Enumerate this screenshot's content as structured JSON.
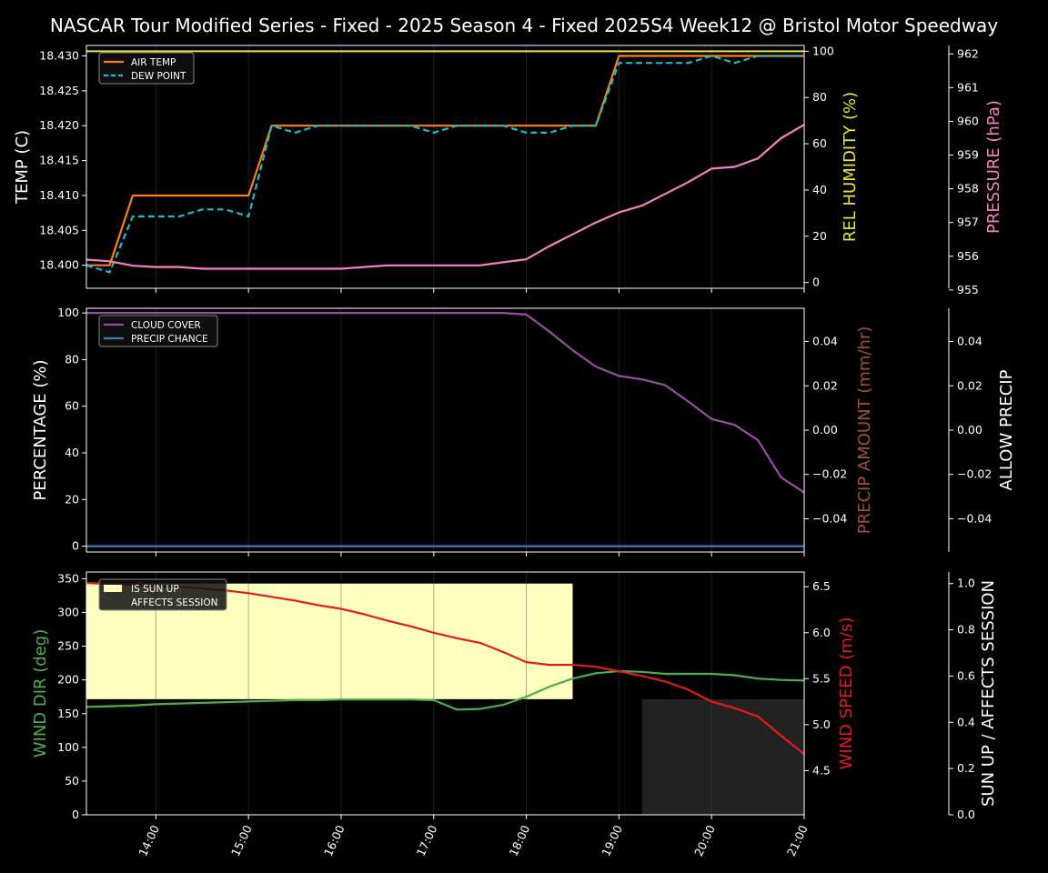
{
  "title": "NASCAR Tour Modified Series - Fixed - 2025 Season 4 - Fixed 2025S4 Week12 @ Bristol Motor Speedway",
  "x_ticks": [
    "14:00",
    "15:00",
    "16:00",
    "17:00",
    "18:00",
    "19:00",
    "20:00",
    "21:00"
  ],
  "colors": {
    "air_temp": "#ff7f0e",
    "dew_point": "#17becf",
    "humidity": "#e6e63c",
    "pressure": "#f781bf",
    "cloud": "#984ea3",
    "precip_chance": "#377eb8",
    "precip_amount": "#a0522d",
    "wind_dir": "#4daf4a",
    "wind_speed": "#e41a1c",
    "sun_up": "#ffffc0",
    "affects": "#222222"
  },
  "chart_data": [
    {
      "type": "line",
      "panel": "weather-temp",
      "x": [
        "13:15",
        "13:30",
        "13:45",
        "14:00",
        "14:15",
        "14:30",
        "14:45",
        "15:00",
        "15:15",
        "15:30",
        "15:45",
        "16:00",
        "16:15",
        "16:30",
        "16:45",
        "17:00",
        "17:15",
        "17:30",
        "17:45",
        "18:00",
        "18:15",
        "18:30",
        "18:45",
        "19:00",
        "19:15",
        "19:30",
        "19:45",
        "20:00",
        "20:15",
        "20:30",
        "20:45",
        "21:00"
      ],
      "xlim": [
        "13:15",
        "21:00"
      ],
      "ylabel": "TEMP (C)",
      "ylim": [
        18.3967,
        18.4315
      ],
      "yticks": [
        "18.400",
        "18.405",
        "18.410",
        "18.415",
        "18.420",
        "18.425",
        "18.430"
      ],
      "y2label": "REL HUMIDITY (%)",
      "y2lim": [
        -2.5,
        102.5
      ],
      "y2ticks": [
        "0",
        "20",
        "40",
        "60",
        "80",
        "100"
      ],
      "y3label": "PRESSURE (hPa)",
      "y3lim": [
        955.05,
        962.25
      ],
      "y3ticks": [
        "955",
        "956",
        "957",
        "958",
        "959",
        "960",
        "961",
        "962"
      ],
      "legend": [
        "AIR TEMP",
        "DEW POINT"
      ],
      "legend_position": "upper-left",
      "series": [
        {
          "name": "AIR TEMP",
          "axis": "y",
          "values": [
            18.4,
            18.4,
            18.41,
            18.41,
            18.41,
            18.41,
            18.41,
            18.41,
            18.42,
            18.42,
            18.42,
            18.42,
            18.42,
            18.42,
            18.42,
            18.42,
            18.42,
            18.42,
            18.42,
            18.42,
            18.42,
            18.42,
            18.42,
            18.43,
            18.43,
            18.43,
            18.43,
            18.43,
            18.43,
            18.43,
            18.43,
            18.43
          ]
        },
        {
          "name": "DEW POINT",
          "axis": "y",
          "values": [
            18.4,
            18.399,
            18.407,
            18.407,
            18.407,
            18.408,
            18.408,
            18.407,
            18.42,
            18.419,
            18.42,
            18.42,
            18.42,
            18.42,
            18.42,
            18.419,
            18.42,
            18.42,
            18.42,
            18.419,
            18.419,
            18.42,
            18.42,
            18.429,
            18.429,
            18.429,
            18.429,
            18.43,
            18.429,
            18.43,
            18.43,
            18.43
          ]
        },
        {
          "axis": "y2",
          "values": [
            100,
            100,
            100,
            100,
            100,
            100,
            100,
            100,
            100,
            100,
            100,
            100,
            100,
            100,
            100,
            100,
            100,
            100,
            100,
            100,
            100,
            100,
            100,
            100,
            100,
            100,
            100,
            100,
            100,
            100,
            100,
            100
          ]
        },
        {
          "axis": "y3",
          "values": [
            955.9,
            955.85,
            955.72,
            955.68,
            955.68,
            955.63,
            955.63,
            955.63,
            955.63,
            955.63,
            955.63,
            955.63,
            955.68,
            955.73,
            955.73,
            955.73,
            955.73,
            955.73,
            955.82,
            955.91,
            956.3,
            956.65,
            957.0,
            957.3,
            957.5,
            957.85,
            958.2,
            958.6,
            958.65,
            958.9,
            959.5,
            959.9
          ]
        }
      ]
    },
    {
      "type": "line",
      "panel": "cloud-precip",
      "x": [
        "13:15",
        "13:30",
        "13:45",
        "14:00",
        "14:15",
        "14:30",
        "14:45",
        "15:00",
        "15:15",
        "15:30",
        "15:45",
        "16:00",
        "16:15",
        "16:30",
        "16:45",
        "17:00",
        "17:15",
        "17:30",
        "17:45",
        "18:00",
        "18:15",
        "18:30",
        "18:45",
        "19:00",
        "19:15",
        "19:30",
        "19:45",
        "20:00",
        "20:15",
        "20:30",
        "20:45",
        "21:00"
      ],
      "xlim": [
        "13:15",
        "21:00"
      ],
      "ylabel": "PERCENTAGE (%)",
      "ylim": [
        -2.5,
        102
      ],
      "yticks": [
        "0",
        "20",
        "40",
        "60",
        "80",
        "100"
      ],
      "y2label": "PRECIP AMOUNT (mm/hr)",
      "y2lim": [
        -0.055,
        0.055
      ],
      "y2ticks": [
        "−0.04",
        "−0.02",
        "0.00",
        "0.02",
        "0.04"
      ],
      "y3label": "ALLOW PRECIP",
      "y3lim": [
        -0.055,
        0.055
      ],
      "y3ticks": [
        "−0.04",
        "−0.02",
        "0.00",
        "0.02",
        "0.04"
      ],
      "legend": [
        "CLOUD COVER",
        "PRECIP CHANCE"
      ],
      "legend_position": "upper-left",
      "series": [
        {
          "name": "CLOUD COVER",
          "axis": "y",
          "values": [
            100,
            100,
            100,
            100,
            100,
            100,
            100,
            100,
            100,
            100,
            100,
            100,
            100,
            100,
            100,
            100,
            100,
            100,
            100,
            99.3,
            92,
            84,
            77,
            73,
            71.5,
            69,
            62,
            54.5,
            52,
            45.5,
            29.5,
            23
          ]
        },
        {
          "name": "PRECIP CHANCE",
          "axis": "y",
          "values": [
            0,
            0,
            0,
            0,
            0,
            0,
            0,
            0,
            0,
            0,
            0,
            0,
            0,
            0,
            0,
            0,
            0,
            0,
            0,
            0,
            0,
            0,
            0,
            0,
            0,
            0,
            0,
            0,
            0,
            0,
            0,
            0
          ]
        }
      ]
    },
    {
      "type": "line",
      "panel": "wind-sun",
      "x": [
        "13:15",
        "13:30",
        "13:45",
        "14:00",
        "14:15",
        "14:30",
        "14:45",
        "15:00",
        "15:15",
        "15:30",
        "15:45",
        "16:00",
        "16:15",
        "16:30",
        "16:45",
        "17:00",
        "17:15",
        "17:30",
        "17:45",
        "18:00",
        "18:15",
        "18:30",
        "18:45",
        "19:00",
        "19:15",
        "19:30",
        "19:45",
        "20:00",
        "20:15",
        "20:30",
        "20:45",
        "21:00"
      ],
      "xlim": [
        "13:15",
        "21:00"
      ],
      "ylabel": "WIND DIR (deg)",
      "ylim": [
        0,
        360
      ],
      "yticks": [
        "0",
        "50",
        "100",
        "150",
        "200",
        "250",
        "300",
        "350"
      ],
      "y2label": "WIND SPEED (m/s)",
      "y2lim": [
        4.02,
        6.66
      ],
      "y2ticks": [
        "4.5",
        "5.0",
        "5.5",
        "6.0",
        "6.5"
      ],
      "y3label": "SUN UP / AFFECTS SESSION",
      "y3lim": [
        0,
        1.05
      ],
      "y3ticks": [
        "0.0",
        "0.2",
        "0.4",
        "0.6",
        "0.8",
        "1.0"
      ],
      "legend": [
        "IS SUN UP",
        "AFFECTS SESSION"
      ],
      "legend_position": "upper-left",
      "bands": [
        {
          "name": "IS SUN UP",
          "x_start": "13:15",
          "x_end": "18:30",
          "y_from": 0.5,
          "y_to": 1.0
        },
        {
          "name": "AFFECTS SESSION",
          "x_start": "19:15",
          "x_end": "21:00",
          "y_from": 0.0,
          "y_to": 0.5
        }
      ],
      "series": [
        {
          "axis": "y",
          "values": [
            160,
            161,
            162,
            164,
            165,
            166,
            167,
            168,
            169,
            170,
            170,
            171,
            171,
            171,
            171,
            170,
            156,
            157,
            163,
            175,
            190,
            202,
            210,
            213,
            212,
            209,
            209,
            209,
            207,
            202,
            200,
            199
          ]
        },
        {
          "axis": "y2",
          "values": [
            6.54,
            6.53,
            6.52,
            6.51,
            6.5,
            6.48,
            6.46,
            6.43,
            6.39,
            6.35,
            6.3,
            6.26,
            6.2,
            6.13,
            6.07,
            6.0,
            5.94,
            5.89,
            5.79,
            5.68,
            5.65,
            5.65,
            5.63,
            5.58,
            5.53,
            5.47,
            5.38,
            5.25,
            5.18,
            5.09,
            4.88,
            4.68
          ]
        }
      ]
    }
  ]
}
